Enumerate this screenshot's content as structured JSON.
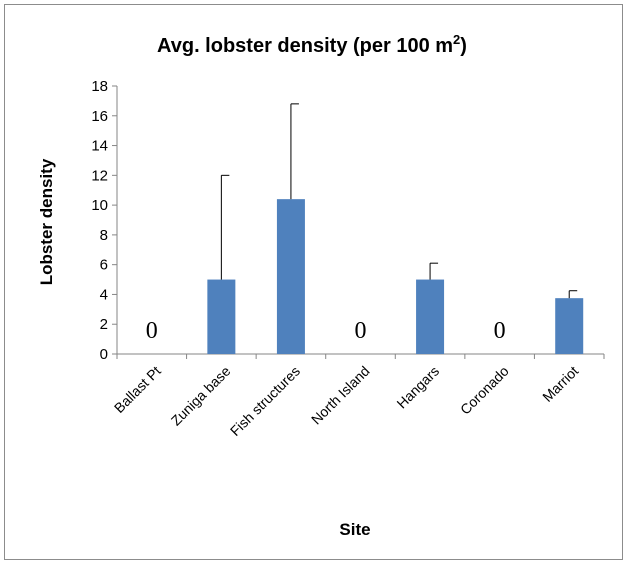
{
  "chart_data": {
    "type": "bar",
    "title": "Avg. lobster density  (per 100 m",
    "title_superscript": "2",
    "title_suffix": ")",
    "xlabel": "Site",
    "ylabel": "Lobster density",
    "ylim": [
      0,
      18
    ],
    "yticks": [
      0,
      2,
      4,
      6,
      8,
      10,
      12,
      14,
      16,
      18
    ],
    "categories": [
      "Ballast Pt",
      "Zuniga base",
      "Fish structures",
      "North Island",
      "Hangars",
      "Coronado",
      "Marriot"
    ],
    "values": [
      0,
      5,
      10.4,
      0,
      5,
      0,
      3.75
    ],
    "error_upper": [
      null,
      12,
      16.8,
      null,
      6.1,
      null,
      4.25
    ],
    "data_labels": [
      "0",
      "",
      "",
      "0",
      "",
      "0",
      ""
    ],
    "bar_color": "#4f81bd",
    "grid": false,
    "legend": "none"
  }
}
